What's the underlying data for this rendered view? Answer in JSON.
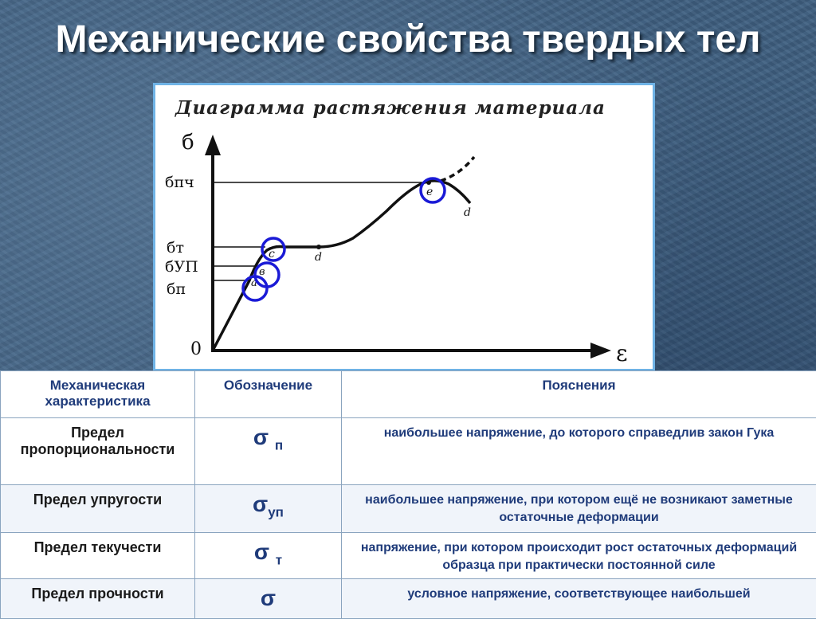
{
  "title": "Механические свойства твердых тел",
  "diagram": {
    "title": "Диаграмма растяжения материала",
    "y_axis_label": "б",
    "x_axis_label": "ε",
    "origin_label": "0",
    "level_labels": {
      "pch": "бпч",
      "t": "бт",
      "up": "бУП",
      "p": "бп"
    },
    "point_labels": {
      "a": "a",
      "b": "в",
      "c": "c",
      "d_plateau": "d",
      "e": "e",
      "d_end": "d"
    },
    "highlight_color": "#1a1ad6"
  },
  "table": {
    "headers": [
      "Механическая характеристика",
      "Обозначение",
      "Пояснения"
    ],
    "rows": [
      {
        "name": "Предел пропорциональности",
        "symbol": "σ",
        "subscript": "п",
        "description": "наибольшее напряжение, до которого справедлив закон Гука"
      },
      {
        "name": "Предел упругости",
        "symbol": "σ",
        "subscript": "уп",
        "description": "наибольшее напряжение, при котором ещё не возникают заметные остаточные деформации"
      },
      {
        "name": "Предел текучести",
        "symbol": "σ",
        "subscript": "т",
        "description": "напряжение, при котором происходит рост остаточных деформаций образца при практически постоянной силе"
      },
      {
        "name": "Предел прочности",
        "symbol": "σ",
        "subscript": "",
        "description": "условное напряжение, соответствующее наибольшей"
      }
    ]
  }
}
